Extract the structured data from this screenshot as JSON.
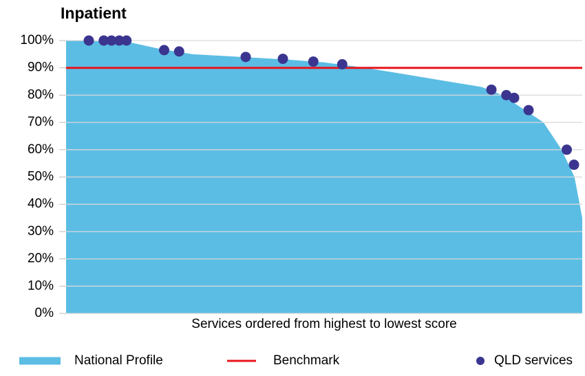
{
  "chart_data": {
    "type": "area-scatter",
    "title": "Inpatient",
    "x_label": "Services ordered from highest to lowest score",
    "xlim": [
      0,
      100
    ],
    "ylim": [
      0,
      100
    ],
    "yticks": [
      {
        "value": 0,
        "label": "0%"
      },
      {
        "value": 10,
        "label": "10%"
      },
      {
        "value": 20,
        "label": "20%"
      },
      {
        "value": 30,
        "label": "30%"
      },
      {
        "value": 40,
        "label": "40%"
      },
      {
        "value": 50,
        "label": "50%"
      },
      {
        "value": 60,
        "label": "60%"
      },
      {
        "value": 70,
        "label": "70%"
      },
      {
        "value": 80,
        "label": "80%"
      },
      {
        "value": 90,
        "label": "90%"
      },
      {
        "value": 100,
        "label": "100%"
      }
    ],
    "grid": true,
    "legend": "bottom",
    "series": [
      {
        "name": "National Profile",
        "kind": "area",
        "color": "#5bbde4",
        "x": [
          0,
          12,
          18,
          24.5,
          34,
          43,
          50,
          58,
          64.5,
          74,
          80.5,
          84.5,
          88.5,
          92.5,
          96,
          98.5,
          100
        ],
        "values": [
          100,
          99.5,
          97,
          95,
          94,
          93,
          92,
          90,
          88,
          85,
          83,
          80,
          75,
          70,
          60,
          50,
          35
        ]
      },
      {
        "name": "Benchmark",
        "kind": "hline",
        "color": "#e8141c",
        "value": 90
      },
      {
        "name": "QLD services",
        "kind": "scatter",
        "color": "#3b3590",
        "x": [
          4.4,
          7.3,
          8.8,
          10.3,
          11.7,
          19,
          21.9,
          34.8,
          42,
          47.9,
          53.5,
          82.4,
          85.3,
          86.8,
          89.6,
          97,
          98.4
        ],
        "values": [
          100,
          100,
          100,
          100,
          100,
          96.5,
          96,
          94,
          93.3,
          92.3,
          91.3,
          82,
          80,
          79,
          74.5,
          60,
          54.5
        ]
      }
    ]
  }
}
